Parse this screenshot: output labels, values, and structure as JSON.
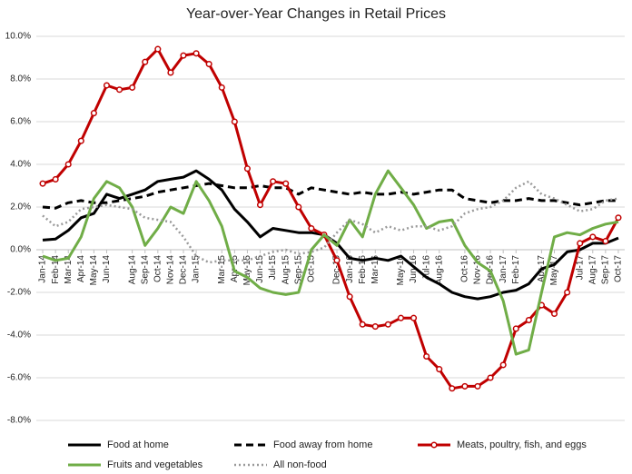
{
  "chart_data": {
    "type": "line",
    "title": "Year-over-Year Changes in Retail Prices",
    "categories": [
      "Jan-14",
      "Feb-14",
      "Mar-14",
      "Apr-14",
      "May-14",
      "Jun-14",
      null,
      "Aug-14",
      "Sep-14",
      "Oct-14",
      "Nov-14",
      "Dec-14",
      "Jan-15",
      null,
      "Mar-15",
      "Apr-15",
      "May-15",
      "Jun-15",
      "Jul-15",
      "Aug-15",
      "Sep-15",
      "Oct-15",
      null,
      "Dec-15",
      "Jan-16",
      "Feb-16",
      "Mar-16",
      null,
      "May-16",
      "Jun-16",
      "Jul-16",
      "Aug-16",
      null,
      "Oct-16",
      "Nov-16",
      "Dec-16",
      "Jan-17",
      "Feb-17",
      null,
      "Apr-17",
      "May-17",
      null,
      "Jul-17",
      "Aug-17",
      "Sep-17",
      "Oct-17"
    ],
    "series": [
      {
        "name": "Food at home",
        "color": "#000000",
        "width": 3,
        "dash": "none",
        "values": [
          0.45,
          0.5,
          0.9,
          1.5,
          1.7,
          2.6,
          2.4,
          2.6,
          2.8,
          3.2,
          3.3,
          3.4,
          3.7,
          3.3,
          2.8,
          1.9,
          1.3,
          0.6,
          1.0,
          0.9,
          0.8,
          0.8,
          0.7,
          0.3,
          -0.4,
          -0.5,
          -0.4,
          -0.5,
          -0.3,
          -0.8,
          -1.3,
          -1.6,
          -2.0,
          -2.2,
          -2.3,
          -2.2,
          -2.0,
          -1.9,
          -1.6,
          -0.9,
          -0.7,
          -0.1,
          0.0,
          0.3,
          0.3,
          0.55
        ]
      },
      {
        "name": "Food away from home",
        "color": "#000000",
        "width": 3,
        "dash": "8,5",
        "values": [
          2.0,
          1.95,
          2.2,
          2.3,
          2.2,
          2.2,
          2.3,
          2.4,
          2.5,
          2.7,
          2.8,
          2.9,
          3.0,
          3.1,
          3.0,
          2.9,
          2.9,
          3.0,
          2.9,
          2.9,
          2.6,
          2.9,
          2.8,
          2.7,
          2.6,
          2.7,
          2.6,
          2.6,
          2.7,
          2.6,
          2.7,
          2.8,
          2.8,
          2.4,
          2.3,
          2.2,
          2.3,
          2.3,
          2.4,
          2.3,
          2.3,
          2.2,
          2.1,
          2.2,
          2.3,
          2.3
        ]
      },
      {
        "name": "Meats, poultry, fish, and eggs",
        "color": "#c00000",
        "width": 3,
        "dash": "none",
        "marker": "circle",
        "values": [
          3.1,
          3.3,
          4.0,
          5.1,
          6.4,
          7.7,
          7.5,
          7.6,
          8.8,
          9.4,
          8.3,
          9.1,
          9.2,
          8.7,
          7.6,
          6.0,
          3.8,
          2.1,
          3.2,
          3.1,
          2.0,
          1.0,
          0.7,
          -0.5,
          -2.2,
          -3.5,
          -3.6,
          -3.5,
          -3.2,
          -3.2,
          -5.0,
          -5.6,
          -6.5,
          -6.4,
          -6.4,
          -6.0,
          -5.4,
          -3.7,
          -3.3,
          -2.6,
          -3.0,
          -2.0,
          0.3,
          0.6,
          0.4,
          1.5
        ]
      },
      {
        "name": "Fruits and vegetables",
        "color": "#70ad47",
        "width": 3,
        "dash": "none",
        "values": [
          -0.3,
          -0.5,
          -0.4,
          0.6,
          2.4,
          3.2,
          2.9,
          2.0,
          0.2,
          1.0,
          2.0,
          1.7,
          3.2,
          2.3,
          1.1,
          -1.0,
          -1.3,
          -1.8,
          -2.0,
          -2.1,
          -2.0,
          0.0,
          0.7,
          0.2,
          1.4,
          0.6,
          2.6,
          3.7,
          2.9,
          2.1,
          1.0,
          1.3,
          1.4,
          0.2,
          -0.6,
          -1.0,
          -2.4,
          -4.9,
          -4.7,
          -2.0,
          0.6,
          0.8,
          0.7,
          1.0,
          1.2,
          1.3
        ]
      },
      {
        "name": "All non-food",
        "color": "#9a9a9a",
        "width": 2.5,
        "dash": "2,3",
        "values": [
          1.6,
          1.1,
          1.3,
          1.9,
          2.0,
          2.1,
          2.0,
          1.9,
          1.5,
          1.4,
          1.3,
          0.6,
          -0.3,
          -0.6,
          -0.5,
          -0.5,
          -0.5,
          -0.3,
          -0.1,
          0.0,
          -0.2,
          -0.1,
          0.1,
          0.8,
          1.4,
          1.2,
          0.8,
          1.1,
          0.9,
          1.1,
          1.1,
          0.9,
          1.1,
          1.7,
          1.9,
          2.0,
          2.3,
          2.9,
          3.2,
          2.6,
          2.4,
          2.1,
          1.8,
          1.9,
          2.3,
          2.4
        ]
      }
    ],
    "ylim": [
      -8,
      10
    ],
    "yticks": [
      {
        "value": -8,
        "label": "-8.0%"
      },
      {
        "value": -6,
        "label": "-6.0%"
      },
      {
        "value": -4,
        "label": "-4.0%"
      },
      {
        "value": -2,
        "label": "-2.0%"
      },
      {
        "value": 0,
        "label": "0.0%"
      },
      {
        "value": 2,
        "label": "2.0%"
      },
      {
        "value": 4,
        "label": "4.0%"
      },
      {
        "value": 6,
        "label": "6.0%"
      },
      {
        "value": 8,
        "label": "8.0%"
      },
      {
        "value": 10,
        "label": "10.0%"
      }
    ],
    "grid": true
  }
}
